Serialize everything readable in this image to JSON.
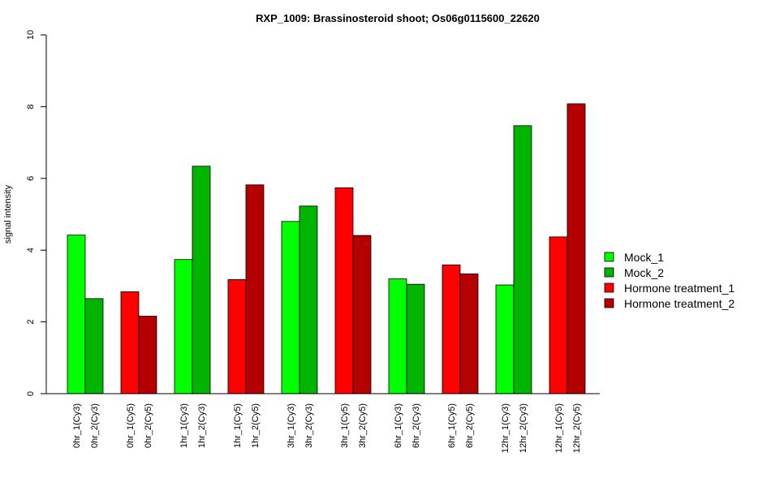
{
  "chart_data": {
    "type": "bar",
    "title": "RXP_1009: Brassinosteroid shoot; Os06g0115600_22620",
    "xlabel": "",
    "ylabel": "signal intensity",
    "ylim": [
      0,
      10
    ],
    "yticks": [
      0,
      2,
      4,
      6,
      8,
      10
    ],
    "grid": false,
    "legend_position": "right",
    "series": [
      {
        "name": "Mock_1",
        "color": "#00ff00"
      },
      {
        "name": "Mock_2",
        "color": "#00b400"
      },
      {
        "name": "Hormone treatment_1",
        "color": "#ff0000"
      },
      {
        "name": "Hormone treatment_2",
        "color": "#b40000"
      }
    ],
    "groups": [
      {
        "bars": [
          {
            "label": "0hr_1(Cy3)",
            "value": 4.42,
            "series": 0
          },
          {
            "label": "0hr_2(Cy3)",
            "value": 2.65,
            "series": 1
          }
        ]
      },
      {
        "bars": [
          {
            "label": "0hr_1(Cy5)",
            "value": 2.84,
            "series": 2
          },
          {
            "label": "0hr_2(Cy5)",
            "value": 2.16,
            "series": 3
          }
        ]
      },
      {
        "bars": [
          {
            "label": "1hr_1(Cy3)",
            "value": 3.74,
            "series": 0
          },
          {
            "label": "1hr_2(Cy3)",
            "value": 6.34,
            "series": 1
          }
        ]
      },
      {
        "bars": [
          {
            "label": "1hr_1(Cy5)",
            "value": 3.18,
            "series": 2
          },
          {
            "label": "1hr_2(Cy5)",
            "value": 5.82,
            "series": 3
          }
        ]
      },
      {
        "bars": [
          {
            "label": "3hr_1(Cy3)",
            "value": 4.8,
            "series": 0
          },
          {
            "label": "3hr_2(Cy3)",
            "value": 5.23,
            "series": 1
          }
        ]
      },
      {
        "bars": [
          {
            "label": "3hr_1(Cy5)",
            "value": 5.74,
            "series": 2
          },
          {
            "label": "3hr_2(Cy5)",
            "value": 4.41,
            "series": 3
          }
        ]
      },
      {
        "bars": [
          {
            "label": "6hr_1(Cy3)",
            "value": 3.2,
            "series": 0
          },
          {
            "label": "6hr_2(Cy3)",
            "value": 3.05,
            "series": 1
          }
        ]
      },
      {
        "bars": [
          {
            "label": "6hr_1(Cy5)",
            "value": 3.59,
            "series": 2
          },
          {
            "label": "6hr_2(Cy5)",
            "value": 3.34,
            "series": 3
          }
        ]
      },
      {
        "bars": [
          {
            "label": "12hr_1(Cy3)",
            "value": 3.03,
            "series": 0
          },
          {
            "label": "12hr_2(Cy3)",
            "value": 7.47,
            "series": 1
          }
        ]
      },
      {
        "bars": [
          {
            "label": "12hr_1(Cy5)",
            "value": 4.37,
            "series": 2
          },
          {
            "label": "12hr_2(Cy5)",
            "value": 8.08,
            "series": 3
          }
        ]
      }
    ]
  }
}
